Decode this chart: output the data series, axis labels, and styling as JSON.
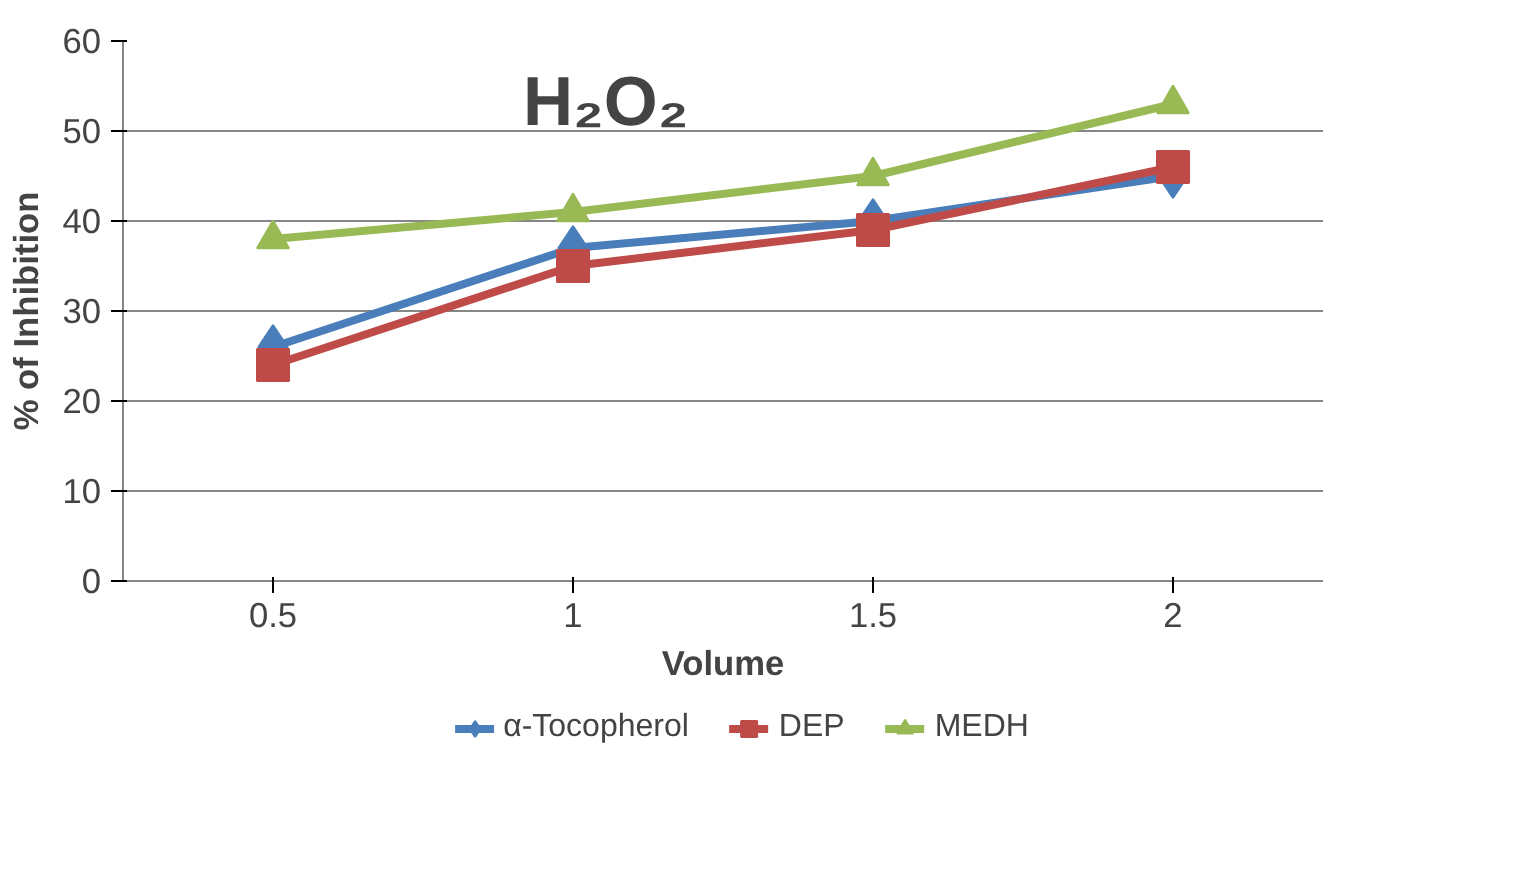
{
  "chart_data": {
    "type": "line",
    "title": "H₂O₂",
    "xlabel": "Volume",
    "ylabel": "% of Inhibition",
    "categories": [
      "0.5",
      "1",
      "1.5",
      "2"
    ],
    "series": [
      {
        "name": "α-Tocopherol",
        "color": "#4a7ebb",
        "marker": "diamond",
        "values": [
          26,
          37,
          40,
          45
        ]
      },
      {
        "name": "DEP",
        "color": "#be4b48",
        "marker": "square",
        "values": [
          24,
          35,
          39,
          46
        ]
      },
      {
        "name": "MEDH",
        "color": "#98b954",
        "marker": "triangle",
        "values": [
          38,
          41,
          45,
          53
        ]
      }
    ],
    "ylim": [
      0,
      60
    ],
    "yticks": [
      0,
      10,
      20,
      30,
      40,
      50,
      60
    ],
    "grid": "y",
    "legend": "bottom",
    "line_style": "solid"
  }
}
